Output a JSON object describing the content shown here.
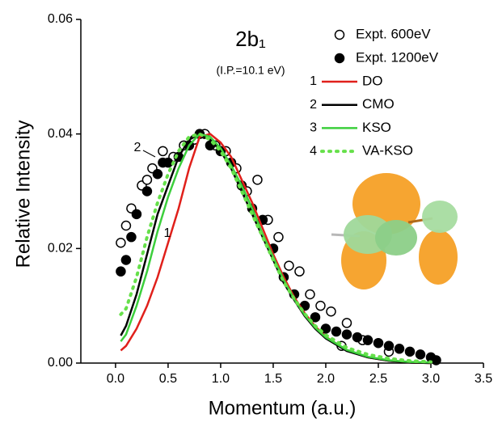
{
  "chart_data": {
    "type": "line",
    "title": "2b₁",
    "subtitle": "(I.P.=10.1 eV)",
    "x_label": "Momentum (a.u.)",
    "y_label": "Relative Intensity",
    "xlim": [
      -0.33,
      3.5
    ],
    "ylim": [
      0,
      0.06
    ],
    "xticks": [
      {
        "value": 0,
        "label": "0.0"
      },
      0.5,
      {
        "value": 1,
        "label": "1.0"
      },
      1.5,
      {
        "value": 2,
        "label": "2.0"
      },
      2.5,
      {
        "value": 3,
        "label": "3.0"
      },
      3.5
    ],
    "yticks": [
      {
        "value": 0,
        "label": "0.00"
      },
      {
        "value": 0.02,
        "label": "0.02"
      },
      {
        "value": 0.04,
        "label": "0.04"
      },
      {
        "value": 0.06,
        "label": "0.06"
      }
    ],
    "legend": "upper right",
    "series": [
      {
        "name": "Expt. 600eV",
        "kind": "scatter",
        "marker": "open",
        "color": "#000000",
        "x": [
          0.05,
          0.1,
          0.15,
          0.25,
          0.3,
          0.35,
          0.45,
          0.55,
          0.65,
          0.75,
          0.85,
          0.95,
          1.05,
          1.15,
          1.25,
          1.35,
          1.45,
          1.55,
          1.65,
          1.75,
          1.85,
          1.95,
          2.05,
          2.15,
          2.2,
          2.35,
          2.6
        ],
        "values": [
          0.021,
          0.024,
          0.027,
          0.031,
          0.032,
          0.034,
          0.037,
          0.036,
          0.038,
          0.039,
          0.04,
          0.038,
          0.037,
          0.034,
          0.03,
          0.032,
          0.025,
          0.022,
          0.017,
          0.016,
          0.012,
          0.01,
          0.009,
          0.003,
          0.007,
          0.004,
          0.002
        ]
      },
      {
        "name": "Expt. 1200eV",
        "kind": "scatter",
        "marker": "filled",
        "color": "#000000",
        "x": [
          0.05,
          0.1,
          0.15,
          0.2,
          0.3,
          0.4,
          0.45,
          0.5,
          0.6,
          0.7,
          0.8,
          0.9,
          1.0,
          1.1,
          1.2,
          1.3,
          1.4,
          1.5,
          1.6,
          1.7,
          1.8,
          1.9,
          2.0,
          2.1,
          2.2,
          2.3,
          2.4,
          2.5,
          2.6,
          2.7,
          2.8,
          2.9,
          3.0,
          3.05
        ],
        "values": [
          0.016,
          0.018,
          0.022,
          0.026,
          0.03,
          0.033,
          0.035,
          0.035,
          0.036,
          0.038,
          0.04,
          0.038,
          0.037,
          0.035,
          0.031,
          0.027,
          0.025,
          0.02,
          0.015,
          0.012,
          0.01,
          0.008,
          0.006,
          0.0055,
          0.005,
          0.0045,
          0.004,
          0.0035,
          0.003,
          0.0025,
          0.002,
          0.0015,
          0.001,
          0.0005
        ]
      },
      {
        "name": "DO",
        "tag": "1",
        "kind": "line",
        "color": "#e0201b",
        "x": [
          0.05,
          0.1,
          0.2,
          0.3,
          0.4,
          0.5,
          0.6,
          0.7,
          0.8,
          0.9,
          1.0,
          1.1,
          1.2,
          1.3,
          1.4,
          1.5,
          1.6,
          1.7,
          1.8,
          1.9,
          2.0,
          2.2,
          2.4,
          2.6,
          2.8,
          3.0
        ],
        "values": [
          0.0022,
          0.003,
          0.006,
          0.01,
          0.015,
          0.021,
          0.027,
          0.034,
          0.0395,
          0.04,
          0.0385,
          0.036,
          0.032,
          0.028,
          0.0235,
          0.019,
          0.015,
          0.0115,
          0.0087,
          0.0064,
          0.0046,
          0.0022,
          0.001,
          0.0004,
          0.0001,
          0
        ]
      },
      {
        "name": "CMO",
        "tag": "2",
        "kind": "line",
        "color": "#000000",
        "x": [
          0.05,
          0.1,
          0.2,
          0.3,
          0.4,
          0.5,
          0.6,
          0.7,
          0.8,
          0.9,
          1.0,
          1.1,
          1.2,
          1.3,
          1.4,
          1.5,
          1.6,
          1.7,
          1.8,
          1.9,
          2.0,
          2.2,
          2.4,
          2.6,
          2.8,
          3.0
        ],
        "values": [
          0.0048,
          0.0065,
          0.012,
          0.019,
          0.026,
          0.031,
          0.036,
          0.039,
          0.04,
          0.039,
          0.037,
          0.034,
          0.03,
          0.026,
          0.022,
          0.018,
          0.014,
          0.011,
          0.0082,
          0.006,
          0.0043,
          0.0021,
          0.001,
          0.0004,
          0.0001,
          0
        ]
      },
      {
        "name": "KSO",
        "tag": "3",
        "kind": "line",
        "color": "#3ccf3c",
        "x": [
          0.05,
          0.1,
          0.2,
          0.3,
          0.4,
          0.5,
          0.6,
          0.7,
          0.8,
          0.9,
          1.0,
          1.1,
          1.2,
          1.3,
          1.4,
          1.5,
          1.6,
          1.7,
          1.8,
          1.9,
          2.0,
          2.2,
          2.4,
          2.6,
          2.8,
          3.0
        ],
        "values": [
          0.0038,
          0.005,
          0.01,
          0.016,
          0.023,
          0.029,
          0.034,
          0.038,
          0.04,
          0.0395,
          0.0375,
          0.0345,
          0.031,
          0.027,
          0.0225,
          0.0185,
          0.0145,
          0.0112,
          0.0084,
          0.0062,
          0.0045,
          0.0023,
          0.0011,
          0.0005,
          0.0002,
          0.0001
        ]
      },
      {
        "name": "VA-KSO",
        "tag": "4",
        "kind": "line",
        "dotted": true,
        "color": "#66e04a",
        "x": [
          0.05,
          0.1,
          0.2,
          0.3,
          0.4,
          0.5,
          0.6,
          0.7,
          0.8,
          0.9,
          1.0,
          1.1,
          1.2,
          1.3,
          1.4,
          1.5,
          1.6,
          1.7,
          1.8,
          1.9,
          2.0,
          2.2,
          2.4,
          2.6,
          2.8,
          3.0
        ],
        "values": [
          0.0085,
          0.0095,
          0.015,
          0.022,
          0.028,
          0.033,
          0.037,
          0.0395,
          0.04,
          0.039,
          0.037,
          0.034,
          0.03,
          0.026,
          0.022,
          0.018,
          0.0142,
          0.0112,
          0.0086,
          0.0065,
          0.0049,
          0.0027,
          0.0015,
          0.0008,
          0.0004,
          0.0002
        ]
      }
    ]
  }
}
